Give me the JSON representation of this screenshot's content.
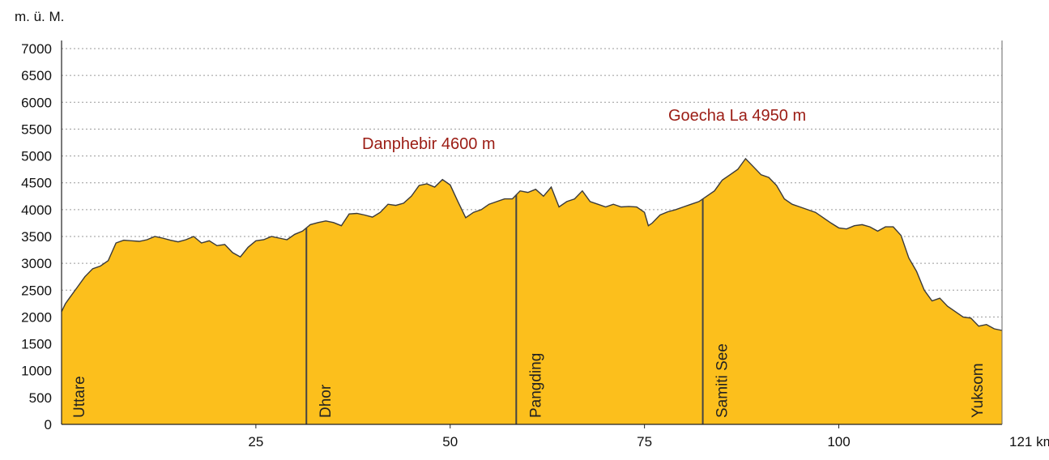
{
  "chart_data": {
    "type": "area",
    "title": "",
    "ylabel": "m. ü. M.",
    "xlabel": "",
    "x_unit_label": "121 km",
    "ylim": [
      0,
      7000
    ],
    "xlim": [
      0,
      121
    ],
    "y_ticks": [
      0,
      500,
      1000,
      1500,
      2000,
      2500,
      3000,
      3500,
      4000,
      4500,
      5000,
      5500,
      6000,
      6500,
      7000
    ],
    "x_ticks": [
      25,
      50,
      75,
      100
    ],
    "grid": true,
    "fill_color": "#fcbf1c",
    "outline_color": "#3a3a3a",
    "peak_label_color": "#9b1c14",
    "series": [
      {
        "x": [
          0,
          0.5,
          1,
          2,
          3,
          4,
          5,
          6,
          7,
          8,
          9,
          10,
          11,
          12,
          13,
          14,
          15,
          16,
          17,
          18,
          19,
          20,
          21,
          22,
          23,
          24,
          25,
          26,
          27,
          28,
          29,
          30,
          31,
          32,
          33,
          34,
          35,
          36,
          37,
          38,
          39,
          40,
          41,
          42,
          43,
          44,
          45,
          46,
          47,
          48,
          49,
          50,
          51,
          52,
          53,
          54,
          55,
          56,
          57,
          58,
          59,
          60,
          61,
          62,
          63,
          64,
          65,
          66,
          67,
          68,
          69,
          70,
          71,
          72,
          73,
          74,
          75,
          75.5,
          76,
          77,
          78,
          79,
          80,
          81,
          82,
          83,
          84,
          85,
          86,
          87,
          88,
          89,
          90,
          91,
          92,
          93,
          94,
          95,
          96,
          97,
          98,
          99,
          100,
          101,
          102,
          103,
          104,
          105,
          106,
          107,
          108,
          109,
          110,
          111,
          112,
          113,
          114,
          115,
          116,
          117,
          118,
          119,
          120,
          121
        ],
        "y": [
          2100,
          2250,
          2350,
          2550,
          2750,
          2900,
          2950,
          3050,
          3380,
          3430,
          3420,
          3410,
          3440,
          3500,
          3470,
          3430,
          3400,
          3440,
          3500,
          3380,
          3420,
          3330,
          3350,
          3200,
          3120,
          3300,
          3420,
          3440,
          3500,
          3470,
          3440,
          3540,
          3600,
          3720,
          3760,
          3790,
          3760,
          3700,
          3920,
          3930,
          3900,
          3860,
          3950,
          4100,
          4080,
          4120,
          4250,
          4450,
          4480,
          4420,
          4560,
          4460,
          4150,
          3850,
          3950,
          4000,
          4100,
          4150,
          4200,
          4200,
          4350,
          4320,
          4380,
          4250,
          4420,
          4050,
          4150,
          4200,
          4350,
          4150,
          4100,
          4050,
          4100,
          4050,
          4060,
          4050,
          3950,
          3700,
          3750,
          3900,
          3960,
          4000,
          4050,
          4100,
          4150,
          4250,
          4350,
          4550,
          4650,
          4750,
          4950,
          4800,
          4650,
          4600,
          4450,
          4200,
          4100,
          4050,
          4000,
          3950,
          3850,
          3750,
          3660,
          3640,
          3700,
          3720,
          3680,
          3600,
          3680,
          3680,
          3520,
          3100,
          2850,
          2500,
          2300,
          2350,
          2200,
          2100,
          2000,
          1980,
          1830,
          1860,
          1780,
          1750
        ]
      }
    ],
    "peak_labels": [
      "Danphebir 4600 m",
      "Goecha La 4950 m"
    ],
    "places": [
      {
        "label": "Uttare",
        "x": 0
      },
      {
        "label": "Dhor",
        "x": 31.5
      },
      {
        "label": "Pangding",
        "x": 58.5
      },
      {
        "label": "Samiti See",
        "x": 82.5
      },
      {
        "label": "Yuksom",
        "x": 121
      }
    ],
    "markers_x": [
      31.5,
      58.5,
      82.5
    ]
  }
}
